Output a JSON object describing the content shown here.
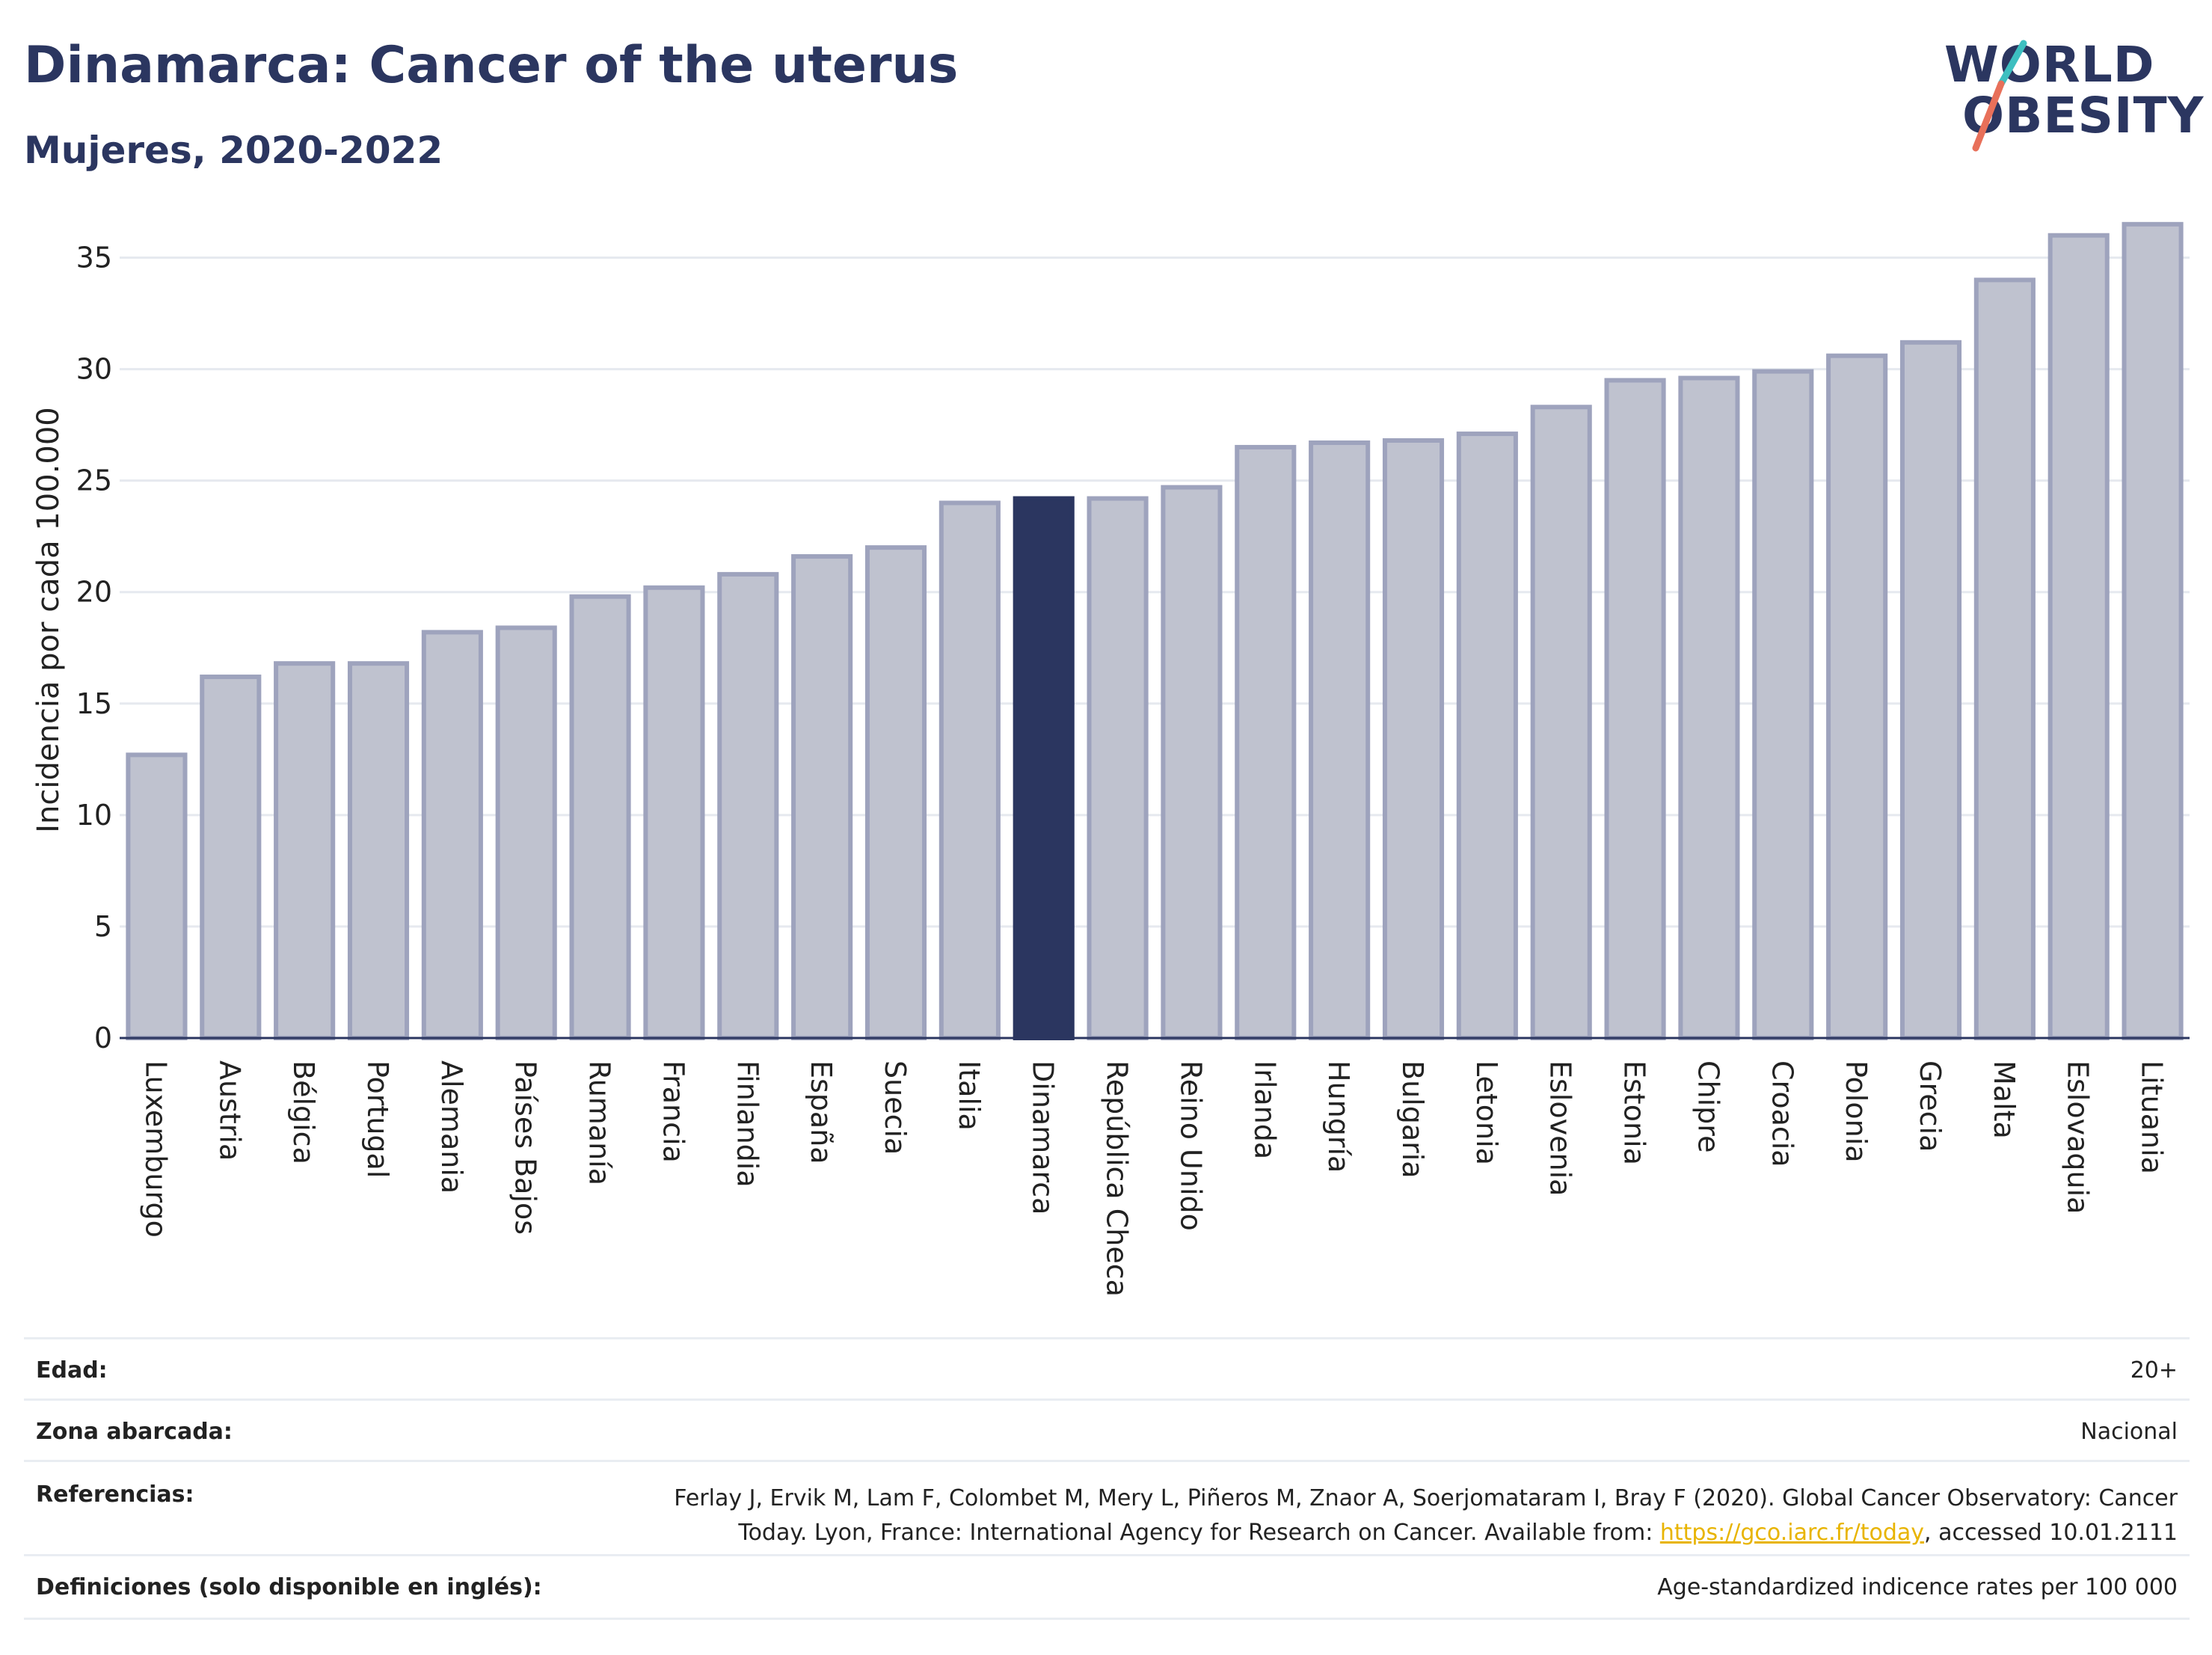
{
  "header": {
    "title": "Dinamarca: Cancer of the uterus",
    "subtitle": "Mujeres, 2020-2022",
    "logo_line1": "WORLD",
    "logo_line2": "OBESITY"
  },
  "colors": {
    "title": "#2b3660",
    "bar": "#bfc2cf",
    "bar_border": "#9ea3bd",
    "highlight_bar": "#2b3660",
    "grid": "#e6e9ef",
    "logo_teal": "#3dbfc0",
    "logo_coral": "#e8705a",
    "link": "#e8b400"
  },
  "chart_data": {
    "type": "bar",
    "title": "Dinamarca: Cancer of the uterus",
    "subtitle": "Mujeres, 2020-2022",
    "ylabel": "Incidencia por cada 100.000",
    "xlabel": "",
    "ylim": [
      0,
      37.5
    ],
    "yticks": [
      0,
      5,
      10,
      15,
      20,
      25,
      30,
      35
    ],
    "grid": true,
    "highlight": "Dinamarca",
    "categories": [
      "Luxemburgo",
      "Austria",
      "Bélgica",
      "Portugal",
      "Alemania",
      "Países Bajos",
      "Rumanía",
      "Francia",
      "Finlandia",
      "España",
      "Suecia",
      "Italia",
      "Dinamarca",
      "República Checa",
      "Reino Unido",
      "Irlanda",
      "Hungría",
      "Bulgaria",
      "Letonia",
      "Eslovenia",
      "Estonia",
      "Chipre",
      "Croacia",
      "Polonia",
      "Grecia",
      "Malta",
      "Eslovaquia",
      "Lituania"
    ],
    "values": [
      12.7,
      16.2,
      16.8,
      16.8,
      18.2,
      18.4,
      19.8,
      20.2,
      20.8,
      21.6,
      22.0,
      24.0,
      24.2,
      24.2,
      24.7,
      26.5,
      26.7,
      26.8,
      27.1,
      28.3,
      29.5,
      29.6,
      29.9,
      30.6,
      31.2,
      34.0,
      36.0,
      36.5
    ]
  },
  "meta": {
    "age_label": "Edad:",
    "age_value": "20+",
    "zone_label": "Zona abarcada:",
    "zone_value": "Nacional",
    "refs_label": "Referencias:",
    "refs_line1": "Ferlay J, Ervik M, Lam F, Colombet M, Mery L, Piñeros M, Znaor A, Soerjomataram I, Bray F (2020). Global Cancer Observatory: Cancer",
    "refs_line2_pre": "Today. Lyon, France: International Agency for Research on Cancer. Available from: ",
    "refs_link": "https://gco.iarc.fr/today",
    "refs_line2_post": ", accessed 10.01.2111",
    "defs_label": "Definiciones (solo disponible en inglés):",
    "defs_value": "Age-standardized indicence rates per 100 000"
  }
}
